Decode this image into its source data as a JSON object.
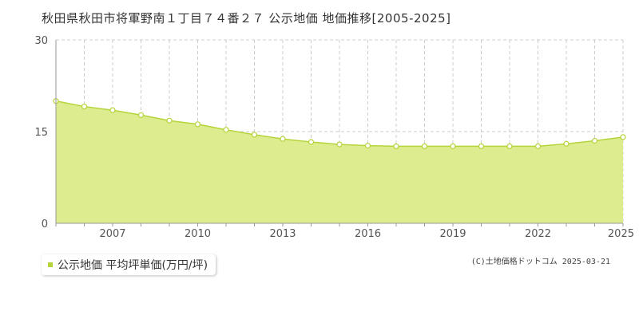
{
  "title": "秋田県秋田市将軍野南１丁目７４番２７ 公示地価 地価推移[2005-2025]",
  "legend_label": "公示地価 平均坪単価(万円/坪)",
  "copyright": "(C)土地価格ドットコム 2025-03-21",
  "colors": {
    "fill": "#dcec8e",
    "line": "#b5d43a",
    "grid": "#cccccc",
    "axis": "#999999"
  },
  "chart_data": {
    "type": "area",
    "x": [
      2005,
      2006,
      2007,
      2008,
      2009,
      2010,
      2011,
      2012,
      2013,
      2014,
      2015,
      2016,
      2017,
      2018,
      2019,
      2020,
      2021,
      2022,
      2023,
      2024,
      2025
    ],
    "series": [
      {
        "values": [
          20.0,
          19.1,
          18.5,
          17.7,
          16.8,
          16.2,
          15.3,
          14.5,
          13.8,
          13.3,
          12.9,
          12.7,
          12.6,
          12.6,
          12.6,
          12.6,
          12.6,
          12.6,
          13.0,
          13.5,
          14.1
        ]
      }
    ],
    "x_tick_labels": [
      "2007",
      "2010",
      "2013",
      "2016",
      "2019",
      "2022",
      "2025"
    ],
    "y_tick_labels": [
      "0",
      "15",
      "30"
    ],
    "xlim": [
      2005,
      2025
    ],
    "ylim": [
      0,
      30
    ],
    "grid": true,
    "legend_position": "bottom-left"
  }
}
